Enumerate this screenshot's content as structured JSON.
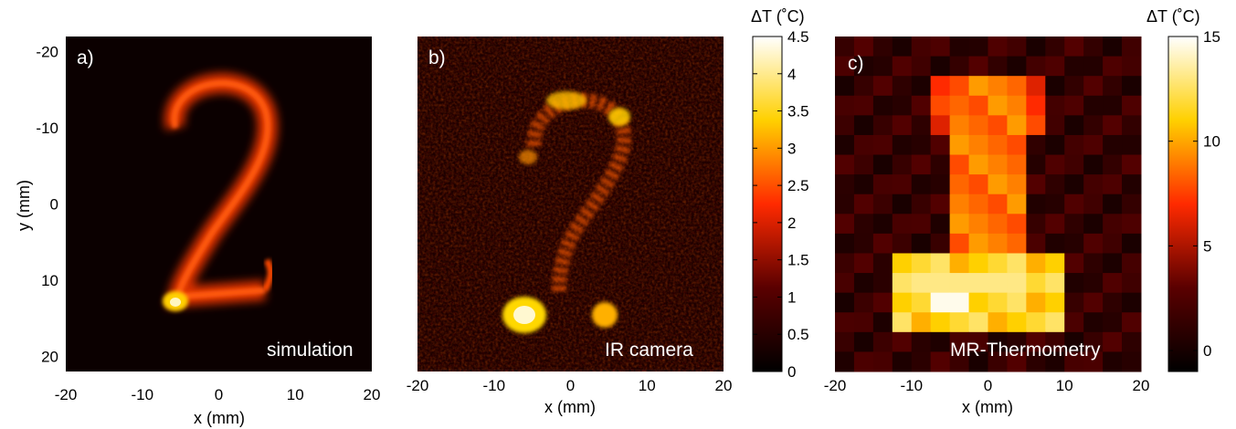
{
  "colors": {
    "cmap_dark": "#000000",
    "cmap_red": "#ff2a00",
    "cmap_yellow": "#ffd000",
    "cmap_white": "#ffffff"
  },
  "chart_data": [
    {
      "type": "heatmap",
      "panel_label": "a)",
      "corner_label": "simulation",
      "xlabel": "x (mm)",
      "ylabel": "y (mm)",
      "xlim": [
        -20,
        20
      ],
      "ylim": [
        -22,
        22
      ],
      "x_ticks": [
        "-20",
        "-10",
        "0",
        "10",
        "20"
      ],
      "y_ticks": [
        "-20",
        "-10",
        "0",
        "10",
        "20"
      ],
      "content": "digit 2 heat pattern"
    },
    {
      "type": "heatmap",
      "panel_label": "b)",
      "corner_label": "IR camera",
      "xlabel": "x (mm)",
      "xlim": [
        -20,
        20
      ],
      "x_ticks": [
        "-20",
        "-10",
        "0",
        "10",
        "20"
      ],
      "colorbar": {
        "title": "ΔT (˚C)",
        "range": [
          0,
          4.5
        ],
        "ticks": [
          "0",
          "0.5",
          "1",
          "1.5",
          "2",
          "2.5",
          "3",
          "3.5",
          "4",
          "4.5"
        ]
      }
    },
    {
      "type": "heatmap",
      "panel_label": "c)",
      "corner_label": "MR-Thermometry",
      "xlabel": "x (mm)",
      "xlim": [
        -20,
        20
      ],
      "x_ticks": [
        "-20",
        "-10",
        "0",
        "10",
        "20"
      ],
      "colorbar": {
        "title": "ΔT (˚C)",
        "range": [
          -1,
          15
        ],
        "ticks": [
          "0",
          "5",
          "10",
          "15"
        ]
      }
    }
  ]
}
